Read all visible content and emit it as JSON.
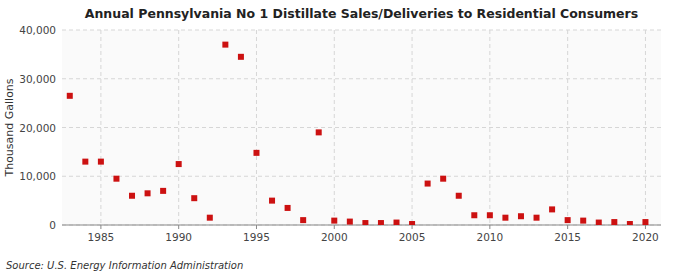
{
  "chart_data": {
    "type": "scatter",
    "title": "Annual Pennsylvania No 1 Distillate Sales/Deliveries to Residential Consumers",
    "y_label": "Thousand Gallons",
    "annotations": [
      "Source: U.S. Energy Information Administration"
    ],
    "x": [
      1983,
      1984,
      1985,
      1986,
      1987,
      1988,
      1989,
      1990,
      1991,
      1992,
      1993,
      1994,
      1995,
      1996,
      1997,
      1998,
      1999,
      2000,
      2001,
      2002,
      2003,
      2004,
      2005,
      2006,
      2007,
      2008,
      2009,
      2010,
      2011,
      2012,
      2013,
      2014,
      2015,
      2016,
      2017,
      2018,
      2019,
      2020
    ],
    "values": [
      26500,
      13000,
      13000,
      9500,
      6000,
      6500,
      7000,
      12500,
      5500,
      1500,
      37000,
      34500,
      14800,
      5000,
      3500,
      1000,
      19000,
      900,
      700,
      400,
      400,
      500,
      200,
      8500,
      9500,
      6000,
      2000,
      2000,
      1500,
      1800,
      1500,
      3200,
      1000,
      900,
      500,
      600,
      200,
      600
    ],
    "color": "#cc1111",
    "marker": "square",
    "xlim": [
      1982.5,
      2021
    ],
    "xticks": [
      1985,
      1990,
      1995,
      2000,
      2005,
      2010,
      2015,
      2020
    ],
    "ylim": [
      0,
      40000
    ],
    "yticks": [
      0,
      {
        "value": 10000,
        "label": "10,000"
      },
      {
        "value": 20000,
        "label": "20,000"
      },
      {
        "value": 30000,
        "label": "30,000"
      },
      {
        "value": 40000,
        "label": "40,000"
      }
    ],
    "grid": true
  }
}
